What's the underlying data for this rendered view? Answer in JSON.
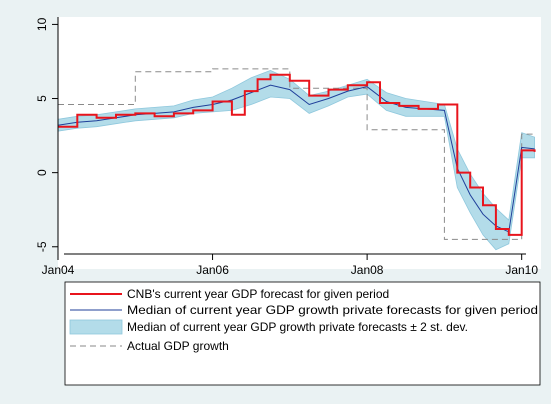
{
  "chart_data": {
    "type": "line",
    "xlim": [
      "2004-01",
      "2010-04"
    ],
    "ylim": [
      -6.5,
      10.5
    ],
    "x_ticks": [
      {
        "label": "Jan04",
        "date": "2004-01"
      },
      {
        "label": "Jan06",
        "date": "2006-01"
      },
      {
        "label": "Jan08",
        "date": "2008-01"
      },
      {
        "label": "Jan10",
        "date": "2010-01"
      }
    ],
    "y_ticks": [
      {
        "label": "10",
        "value": 10
      },
      {
        "label": "5",
        "value": 5
      },
      {
        "label": "0",
        "value": 0
      },
      {
        "label": "-5",
        "value": -5
      }
    ],
    "grid": "none",
    "legend_position": "bottom",
    "colors": {
      "background": "#eaf2f3",
      "plot_area": "#ffffff",
      "cnb": "#e8141c",
      "median": "#1f3f9a",
      "band_fill": "#b3dce9",
      "band_edge": "#8fc8dd",
      "actual": "#8a8a8a"
    },
    "series": [
      {
        "name": "CNB's current year GDP forecast for given period",
        "style": "step",
        "points": [
          [
            "2004-01",
            3.1
          ],
          [
            "2004-04",
            3.9
          ],
          [
            "2004-07",
            3.7
          ],
          [
            "2004-10",
            3.9
          ],
          [
            "2005-01",
            4.0
          ],
          [
            "2005-04",
            3.8
          ],
          [
            "2005-07",
            4.0
          ],
          [
            "2005-10",
            4.2
          ],
          [
            "2006-01",
            4.8
          ],
          [
            "2006-04",
            3.9
          ],
          [
            "2006-06",
            5.5
          ],
          [
            "2006-08",
            6.3
          ],
          [
            "2006-10",
            6.6
          ],
          [
            "2007-01",
            6.2
          ],
          [
            "2007-04",
            5.2
          ],
          [
            "2007-07",
            5.6
          ],
          [
            "2007-10",
            5.9
          ],
          [
            "2008-01",
            6.1
          ],
          [
            "2008-03",
            4.7
          ],
          [
            "2008-06",
            4.5
          ],
          [
            "2008-09",
            4.3
          ],
          [
            "2008-12",
            4.6
          ],
          [
            "2009-03",
            0.0
          ],
          [
            "2009-05",
            -1.0
          ],
          [
            "2009-07",
            -2.2
          ],
          [
            "2009-09",
            -3.8
          ],
          [
            "2009-11",
            -4.2
          ],
          [
            "2010-01",
            1.5
          ],
          [
            "2010-03",
            1.4
          ]
        ]
      },
      {
        "name": "Median of current year GDP growth private forecasts for given period",
        "style": "line",
        "points": [
          [
            "2004-01",
            3.2
          ],
          [
            "2004-04",
            3.4
          ],
          [
            "2004-07",
            3.5
          ],
          [
            "2004-10",
            3.7
          ],
          [
            "2005-01",
            3.9
          ],
          [
            "2005-04",
            4.0
          ],
          [
            "2005-07",
            4.1
          ],
          [
            "2005-10",
            4.4
          ],
          [
            "2006-01",
            4.6
          ],
          [
            "2006-04",
            4.9
          ],
          [
            "2006-07",
            5.4
          ],
          [
            "2006-10",
            5.9
          ],
          [
            "2007-01",
            5.6
          ],
          [
            "2007-04",
            4.6
          ],
          [
            "2007-07",
            5.0
          ],
          [
            "2007-10",
            5.5
          ],
          [
            "2008-01",
            5.8
          ],
          [
            "2008-04",
            4.8
          ],
          [
            "2008-07",
            4.4
          ],
          [
            "2008-10",
            4.3
          ],
          [
            "2009-01",
            4.2
          ],
          [
            "2009-03",
            0.3
          ],
          [
            "2009-05",
            -1.5
          ],
          [
            "2009-07",
            -2.8
          ],
          [
            "2009-09",
            -3.6
          ],
          [
            "2009-11",
            -4.0
          ],
          [
            "2010-01",
            1.7
          ],
          [
            "2010-03",
            1.6
          ]
        ]
      },
      {
        "name": "Actual GDP growth",
        "style": "step",
        "points": [
          [
            "2004-01",
            4.6
          ],
          [
            "2005-01",
            6.8
          ],
          [
            "2006-01",
            7.0
          ],
          [
            "2007-01",
            5.7
          ],
          [
            "2008-01",
            2.9
          ],
          [
            "2009-01",
            -4.5
          ],
          [
            "2010-01",
            2.6
          ],
          [
            "2010-03",
            2.6
          ]
        ]
      }
    ],
    "band": {
      "name": "Median of current year GDP growth private forecasts ± 2 st. dev.",
      "points": [
        [
          "2004-01",
          2.8,
          3.6
        ],
        [
          "2004-04",
          3.0,
          3.8
        ],
        [
          "2004-07",
          3.1,
          3.9
        ],
        [
          "2004-10",
          3.3,
          4.1
        ],
        [
          "2005-01",
          3.5,
          4.3
        ],
        [
          "2005-04",
          3.6,
          4.4
        ],
        [
          "2005-07",
          3.7,
          4.5
        ],
        [
          "2005-10",
          4.0,
          4.9
        ],
        [
          "2006-01",
          4.1,
          5.1
        ],
        [
          "2006-04",
          4.2,
          5.7
        ],
        [
          "2006-07",
          4.6,
          6.4
        ],
        [
          "2006-10",
          5.1,
          6.9
        ],
        [
          "2007-01",
          5.0,
          6.3
        ],
        [
          "2007-04",
          4.0,
          5.2
        ],
        [
          "2007-07",
          4.5,
          5.5
        ],
        [
          "2007-10",
          5.1,
          5.9
        ],
        [
          "2008-01",
          5.3,
          6.3
        ],
        [
          "2008-04",
          4.2,
          5.4
        ],
        [
          "2008-07",
          3.8,
          5.0
        ],
        [
          "2008-10",
          3.8,
          4.8
        ],
        [
          "2009-01",
          3.8,
          4.6
        ],
        [
          "2009-03",
          -1.0,
          1.6
        ],
        [
          "2009-05",
          -2.7,
          -0.1
        ],
        [
          "2009-07",
          -4.2,
          -1.4
        ],
        [
          "2009-09",
          -5.2,
          -2.4
        ],
        [
          "2009-11",
          -4.8,
          -3.2
        ],
        [
          "2010-01",
          1.0,
          2.7
        ],
        [
          "2010-03",
          1.0,
          2.4
        ]
      ]
    }
  }
}
